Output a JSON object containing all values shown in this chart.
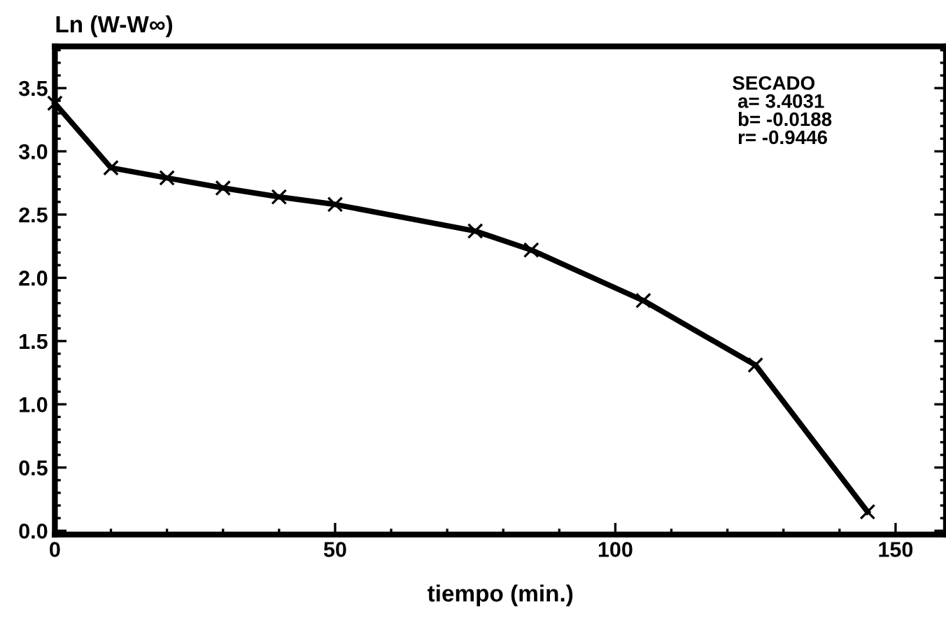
{
  "chart_data": {
    "type": "line",
    "xlabel": "tiempo (min.)",
    "ylabel": "Ln (W-W∞)",
    "x": [
      0,
      10,
      20,
      30,
      40,
      50,
      75,
      85,
      105,
      125,
      145
    ],
    "series": [
      {
        "color": "#000000",
        "values": [
          3.38,
          2.87,
          2.79,
          2.71,
          2.64,
          2.58,
          2.37,
          2.22,
          1.82,
          1.31,
          0.15
        ]
      }
    ],
    "marker": "cross",
    "line_style": "solid",
    "xlim": [
      0,
      159
    ],
    "ylim": [
      -0.03,
      3.83
    ],
    "xticks": [
      0,
      50,
      100,
      150
    ],
    "yticks": [
      {
        "value": 0,
        "label": "0.0"
      },
      0.5,
      {
        "value": 1,
        "label": "1.0"
      },
      1.5,
      {
        "value": 2,
        "label": "2.0"
      },
      2.5,
      {
        "value": 3,
        "label": "3.0"
      },
      3.5
    ],
    "annotations": [
      "SECADO\n a= 3.4031\n b= -0.0188\n r= -0.9446"
    ]
  }
}
